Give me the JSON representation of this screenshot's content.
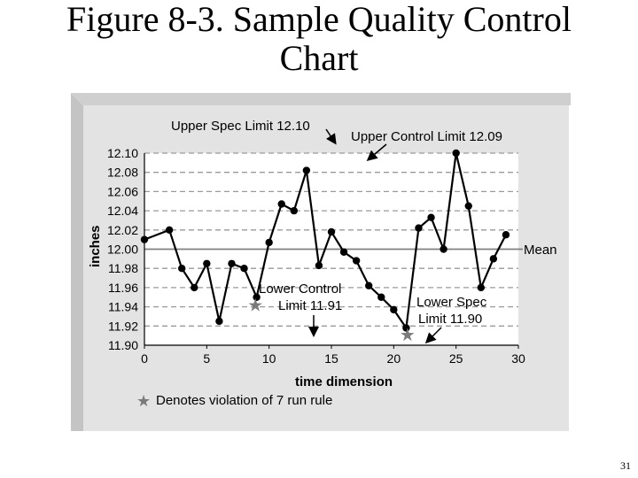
{
  "slide": {
    "title_line1": "Figure 8-3. Sample Quality Control",
    "title_line2": "Chart",
    "page_number": "31"
  },
  "chart_data": {
    "type": "line",
    "xlabel": "time dimension",
    "ylabel": "inches",
    "xlim": [
      0,
      30
    ],
    "ylim": [
      11.9,
      12.1
    ],
    "x_ticks": [
      "0",
      "5",
      "10",
      "15",
      "20",
      "25",
      "30"
    ],
    "y_ticks": [
      "12.10",
      "12.08",
      "12.06",
      "12.04",
      "12.02",
      "12.00",
      "11.98",
      "11.96",
      "11.94",
      "11.92",
      "11.90"
    ],
    "grid": "dashed horizontal",
    "series": [
      {
        "points": [
          [
            0,
            12.01
          ],
          [
            2,
            12.02
          ],
          [
            3,
            11.98
          ],
          [
            4,
            11.96
          ],
          [
            5,
            11.985
          ],
          [
            6,
            11.925
          ],
          [
            7,
            11.985
          ],
          [
            8,
            11.98
          ],
          [
            9,
            11.95
          ],
          [
            10,
            12.007
          ],
          [
            11,
            12.047
          ],
          [
            12,
            12.04
          ],
          [
            13,
            12.082
          ],
          [
            14,
            11.983
          ],
          [
            15,
            12.018
          ],
          [
            16,
            11.997
          ],
          [
            17,
            11.988
          ],
          [
            18,
            11.962
          ],
          [
            19,
            11.95
          ],
          [
            20,
            11.937
          ],
          [
            21,
            11.918
          ],
          [
            22,
            12.022
          ],
          [
            23,
            12.033
          ],
          [
            24,
            12.0
          ],
          [
            25,
            12.1
          ],
          [
            26,
            12.045
          ],
          [
            27,
            11.96
          ],
          [
            28,
            11.99
          ],
          [
            29,
            12.015
          ]
        ]
      }
    ],
    "mean_line": {
      "y": 12.0,
      "label": "Mean"
    },
    "annotations": [
      {
        "text": "Upper Spec Limit 12.10"
      },
      {
        "text": "Upper Control Limit 12.09"
      },
      {
        "text_line1": "Lower Control",
        "text_line2": "Limit 11.91"
      },
      {
        "text_line1": "Lower Spec",
        "text_line2": "Limit 11.90"
      }
    ],
    "violation_markers": [
      {
        "x": 8.9,
        "y": 11.942
      },
      {
        "x": 21.1,
        "y": 11.911
      }
    ],
    "legend_note": "Denotes violation of 7 run rule",
    "colors": {
      "panel_bg": "#e3e3e3",
      "panel_side": "#c4c4c4",
      "plot_bg": "#ffffff",
      "line": "#000000",
      "marker": "#000000",
      "mean": "#808080",
      "grid": "#9a9a9a",
      "star": "#7a7a7a"
    }
  }
}
